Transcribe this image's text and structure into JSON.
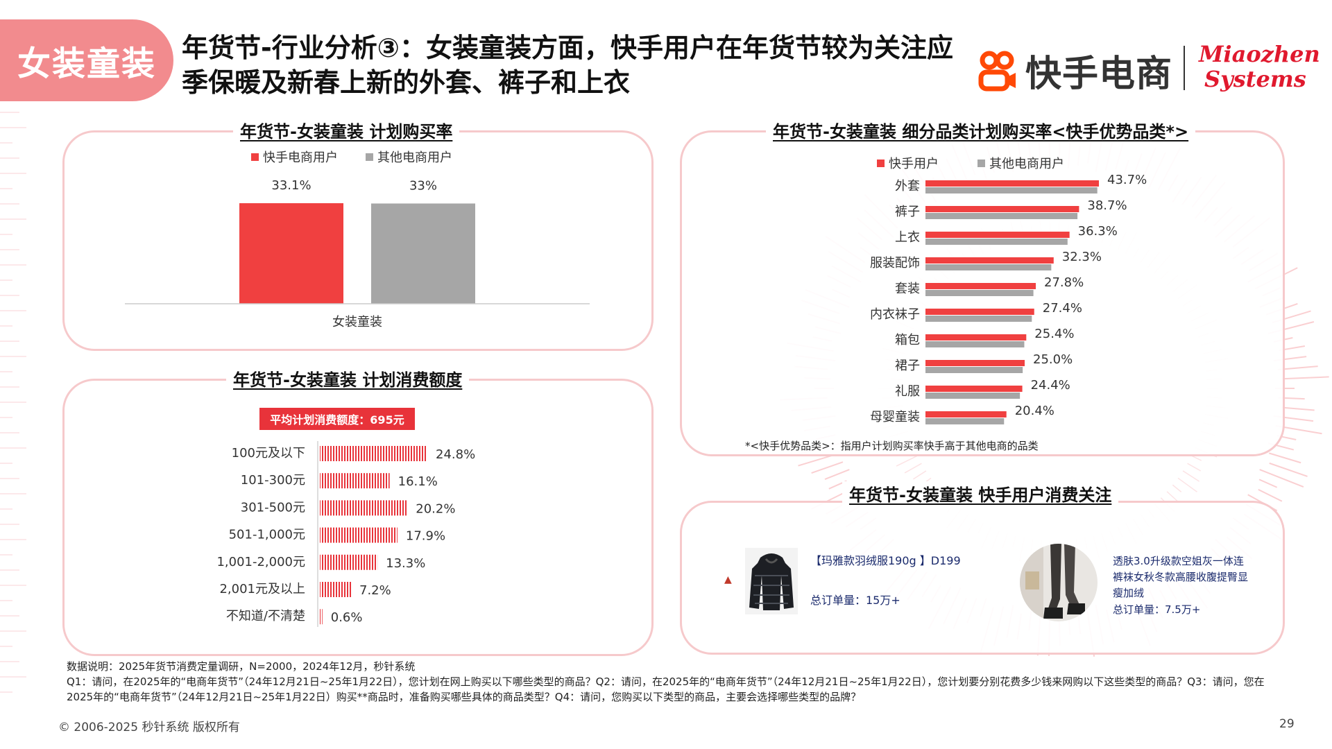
{
  "header": {
    "tag": "女装童装",
    "title": "年货节-行业分析③：女装童装方面，快手用户在年货节较为关注应季保暖及新春上新的外套、裤子和上衣",
    "logo_kuaishou": "快手电商",
    "logo_miaozhen_line1": "Miaozhen",
    "logo_miaozhen_line2": "Systems"
  },
  "colors": {
    "accent_red": "#f04040",
    "gray": "#a6a6a6",
    "stripe_red": "#e8333a",
    "pill": "#f28b8e"
  },
  "chart_data": [
    {
      "type": "bar",
      "title": "年货节-女装童装 计划购买率",
      "categories": [
        "女装童装"
      ],
      "series": [
        {
          "name": "快手电商用户",
          "values": [
            33.1
          ],
          "labels": [
            "33.1%"
          ]
        },
        {
          "name": "其他电商用户",
          "values": [
            33.0
          ],
          "labels": [
            "33%"
          ]
        }
      ]
    },
    {
      "type": "bar",
      "orientation": "horizontal",
      "title": "年货节-女装童装 细分品类计划购买率<快手优势品类*>",
      "categories": [
        "外套",
        "裤子",
        "上衣",
        "服装配饰",
        "套装",
        "内衣袜子",
        "箱包",
        "裙子",
        "礼服",
        "母婴童装"
      ],
      "series": [
        {
          "name": "快手用户",
          "values": [
            43.7,
            38.7,
            36.3,
            32.3,
            27.8,
            27.4,
            25.4,
            25.0,
            24.4,
            20.4
          ],
          "labels": [
            "43.7%",
            "38.7%",
            "36.3%",
            "32.3%",
            "27.8%",
            "27.4%",
            "25.4%",
            "25.0%",
            "24.4%",
            "20.4%"
          ]
        },
        {
          "name": "其他电商用户",
          "values": [
            43.3,
            38.3,
            35.8,
            31.7,
            27.2,
            26.8,
            24.9,
            24.5,
            23.8,
            19.8
          ]
        }
      ],
      "footnote": "*<快手优势品类>：指用户计划购买率快手高于其他电商的品类"
    },
    {
      "type": "bar",
      "orientation": "horizontal",
      "title": "年货节-女装童装 计划消费额度",
      "badge": "平均计划消费额度：695元",
      "categories": [
        "100元及以下",
        "101-300元",
        "301-500元",
        "501-1,000元",
        "1,001-2,000元",
        "2,001元及以上",
        "不知道/不清楚"
      ],
      "values": [
        24.8,
        16.1,
        20.2,
        17.9,
        13.3,
        7.2,
        0.6
      ],
      "labels": [
        "24.8%",
        "16.1%",
        "20.2%",
        "17.9%",
        "13.3%",
        "7.2%",
        "0.6%"
      ]
    }
  ],
  "consumer_focus": {
    "title": "年货节-女装童装 快手用户消费关注",
    "products": [
      {
        "name": "【玛雅款羽绒服190g 】D199",
        "orders": "总订单量：15万+"
      },
      {
        "name": "透肤3.0升级款空姐灰一体连裤袜女秋冬款高腰收腹提臀显瘦加绒",
        "orders": "总订单量：7.5万+"
      }
    ]
  },
  "footer": {
    "source": "数据说明：2025年货节消费定量调研，N=2000，2024年12月，秒针系统",
    "questions": "Q1：请问，在2025年的“电商年货节”（24年12月21日~25年1月22日），您计划在网上购买以下哪些类型的商品？Q2：请问，在2025年的“电商年货节”（24年12月21日~25年1月22日），您计划要分别花费多少钱来网购以下这些类型的商品？Q3：请问，您在2025年的“电商年货节”（24年12月21日~25年1月22日）购买**商品时，准备购买哪些具体的商品类型？Q4：请问，您购买以下类型的商品，主要会选择哪些类型的品牌？",
    "copyright": "© 2006-2025 秒针系统 版权所有",
    "page": "29"
  }
}
